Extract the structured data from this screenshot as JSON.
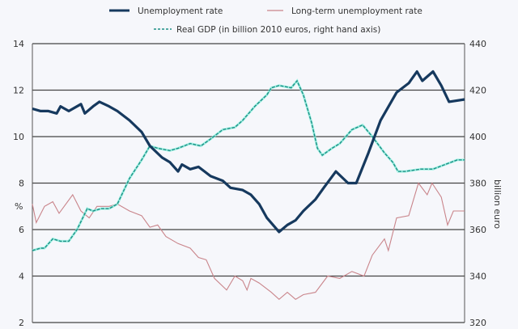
{
  "chart_data": {
    "type": "line",
    "title": "",
    "xlabel": "",
    "ylabel": "%",
    "y2label": "billion euro",
    "ylim": [
      2,
      14
    ],
    "y2lim": [
      320,
      440
    ],
    "yticks": [
      2,
      4,
      6,
      8,
      10,
      12,
      14
    ],
    "y2ticks": [
      320,
      340,
      360,
      380,
      400,
      420,
      440
    ],
    "xlim": [
      0,
      89
    ],
    "x_unit": "period index (quarters, unlabeled)",
    "grid": "horizontal",
    "legend_placement": "top",
    "colors": {
      "unemployment": "#16395e",
      "longterm": "#c9848a",
      "gdp": "#1e8f86",
      "gdp_halo": "#8ff0de",
      "grid": "#444444"
    },
    "series": [
      {
        "name": "Unemployment rate",
        "axis": "left",
        "style": "solid-thick",
        "points": [
          [
            0,
            11.2
          ],
          [
            1.7,
            11.1
          ],
          [
            3.3,
            11.1
          ],
          [
            5,
            11.0
          ],
          [
            5.8,
            11.3
          ],
          [
            7.5,
            11.1
          ],
          [
            10,
            11.4
          ],
          [
            10.8,
            11.0
          ],
          [
            12.5,
            11.3
          ],
          [
            13.8,
            11.5
          ],
          [
            15.8,
            11.3
          ],
          [
            17.5,
            11.1
          ],
          [
            20,
            10.7
          ],
          [
            22.5,
            10.2
          ],
          [
            24.2,
            9.6
          ],
          [
            26.7,
            9.1
          ],
          [
            28.3,
            8.9
          ],
          [
            30,
            8.5
          ],
          [
            30.8,
            8.8
          ],
          [
            32.5,
            8.6
          ],
          [
            34.2,
            8.7
          ],
          [
            36.7,
            8.3
          ],
          [
            39.2,
            8.1
          ],
          [
            40.8,
            7.8
          ],
          [
            43.3,
            7.7
          ],
          [
            45,
            7.5
          ],
          [
            46.7,
            7.1
          ],
          [
            48.3,
            6.5
          ],
          [
            50.8,
            5.9
          ],
          [
            52.5,
            6.2
          ],
          [
            54.2,
            6.4
          ],
          [
            55.8,
            6.8
          ],
          [
            58.3,
            7.3
          ],
          [
            60,
            7.8
          ],
          [
            62.5,
            8.5
          ],
          [
            65,
            8.0
          ],
          [
            66.7,
            8.0
          ],
          [
            69.2,
            9.3
          ],
          [
            71.7,
            10.7
          ],
          [
            75,
            11.9
          ],
          [
            77.5,
            12.3
          ],
          [
            79.2,
            12.8
          ],
          [
            80.3,
            12.4
          ],
          [
            82.5,
            12.8
          ],
          [
            84.2,
            12.2
          ],
          [
            85.8,
            11.5
          ],
          [
            89,
            11.6
          ]
        ]
      },
      {
        "name": "Long-term unemployment rate",
        "axis": "left",
        "style": "solid-thin",
        "points": [
          [
            0,
            7.1
          ],
          [
            0.8,
            6.3
          ],
          [
            2.5,
            7.0
          ],
          [
            4.2,
            7.2
          ],
          [
            5.5,
            6.7
          ],
          [
            8.3,
            7.5
          ],
          [
            10,
            6.8
          ],
          [
            11.7,
            6.5
          ],
          [
            13.3,
            7.0
          ],
          [
            15.8,
            7.0
          ],
          [
            17.5,
            7.1
          ],
          [
            20,
            6.8
          ],
          [
            22.5,
            6.6
          ],
          [
            24.2,
            6.1
          ],
          [
            25.8,
            6.2
          ],
          [
            27.5,
            5.7
          ],
          [
            30,
            5.4
          ],
          [
            32.5,
            5.2
          ],
          [
            34.2,
            4.8
          ],
          [
            35.8,
            4.7
          ],
          [
            37.5,
            3.9
          ],
          [
            40,
            3.4
          ],
          [
            41.7,
            4.0
          ],
          [
            43.3,
            3.8
          ],
          [
            44.2,
            3.4
          ],
          [
            45,
            3.9
          ],
          [
            46.7,
            3.7
          ],
          [
            49.2,
            3.3
          ],
          [
            50.8,
            3.0
          ],
          [
            52.5,
            3.3
          ],
          [
            54.2,
            3.0
          ],
          [
            55.8,
            3.2
          ],
          [
            58.3,
            3.3
          ],
          [
            60.8,
            4.0
          ],
          [
            63.3,
            3.9
          ],
          [
            65.8,
            4.2
          ],
          [
            68.3,
            4.0
          ],
          [
            70,
            4.9
          ],
          [
            72.5,
            5.6
          ],
          [
            73.3,
            5.1
          ],
          [
            75,
            6.5
          ],
          [
            77.5,
            6.6
          ],
          [
            79.5,
            8.0
          ],
          [
            81.3,
            7.5
          ],
          [
            82.3,
            8.0
          ],
          [
            84.2,
            7.4
          ],
          [
            85.5,
            6.2
          ],
          [
            86.7,
            6.8
          ],
          [
            89,
            6.8
          ]
        ]
      },
      {
        "name": "Real GDP (in billion 2010 euros, right hand axis)",
        "axis": "right",
        "style": "dashed",
        "points": [
          [
            0,
            351
          ],
          [
            1.7,
            352
          ],
          [
            2.5,
            352
          ],
          [
            4.2,
            356
          ],
          [
            5.8,
            355
          ],
          [
            7.5,
            355
          ],
          [
            9.2,
            360
          ],
          [
            11.3,
            369
          ],
          [
            12.5,
            368
          ],
          [
            14.2,
            369
          ],
          [
            15.8,
            369
          ],
          [
            17.5,
            371
          ],
          [
            20,
            382
          ],
          [
            22.5,
            390
          ],
          [
            24.2,
            396
          ],
          [
            25.8,
            395
          ],
          [
            28.3,
            394
          ],
          [
            30,
            395
          ],
          [
            32.5,
            397
          ],
          [
            34.7,
            396
          ],
          [
            36.7,
            399
          ],
          [
            39.2,
            403
          ],
          [
            41.7,
            404
          ],
          [
            43.3,
            407
          ],
          [
            45.8,
            413
          ],
          [
            48.3,
            418
          ],
          [
            49.2,
            421
          ],
          [
            50.8,
            422
          ],
          [
            53.3,
            421
          ],
          [
            54.5,
            424
          ],
          [
            55.8,
            418
          ],
          [
            57.5,
            406
          ],
          [
            58.7,
            395
          ],
          [
            59.7,
            392
          ],
          [
            61.7,
            395
          ],
          [
            63.3,
            397
          ],
          [
            65.8,
            403
          ],
          [
            68,
            405
          ],
          [
            70,
            400
          ],
          [
            72.5,
            393
          ],
          [
            74.2,
            389
          ],
          [
            75.3,
            385
          ],
          [
            76.7,
            385
          ],
          [
            80,
            386
          ],
          [
            82.5,
            386
          ],
          [
            85,
            388
          ],
          [
            87.5,
            390
          ],
          [
            89,
            390
          ]
        ]
      }
    ]
  }
}
